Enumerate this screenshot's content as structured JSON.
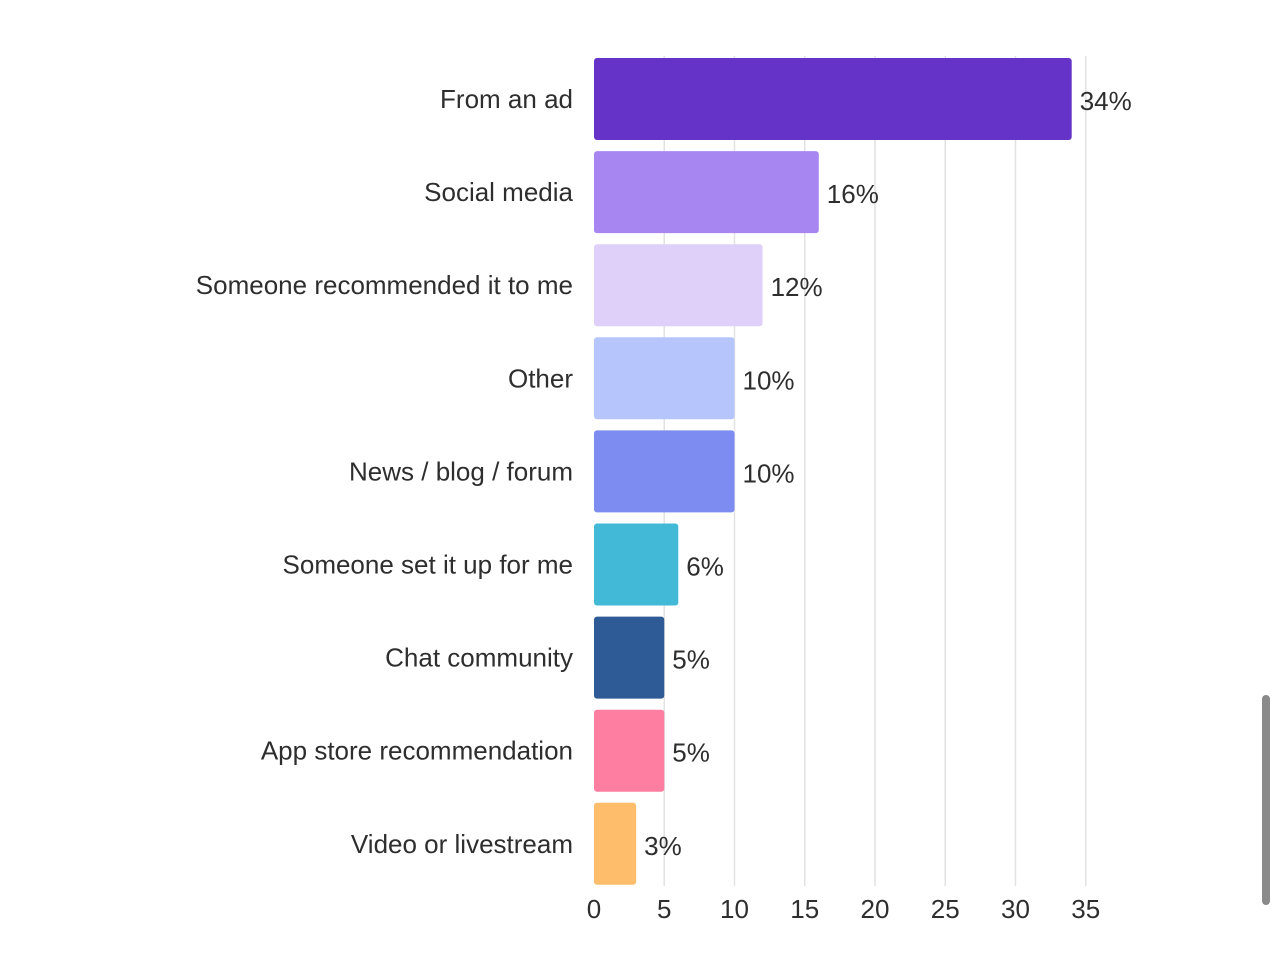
{
  "chart_data": {
    "type": "bar",
    "orientation": "horizontal",
    "categories": [
      "From an ad",
      "Social media",
      "Someone recommended it to me",
      "Other",
      "News / blog / forum",
      "Someone set it up for me",
      "Chat community",
      "App store recommendation",
      "Video or livestream"
    ],
    "values": [
      34,
      16,
      12,
      10,
      10,
      6,
      5,
      5,
      3
    ],
    "value_labels": [
      "34%",
      "16%",
      "12%",
      "10%",
      "10%",
      "6%",
      "5%",
      "5%",
      "3%"
    ],
    "colors": [
      "#6633c8",
      "#a886f2",
      "#dfd0f9",
      "#b7c5fd",
      "#7c8cf0",
      "#42b9d7",
      "#2e5b95",
      "#fd7ea1",
      "#febd6b"
    ],
    "xticks": [
      "0",
      "5",
      "10",
      "15",
      "20",
      "25",
      "30",
      "35"
    ],
    "xlim": [
      0,
      35
    ],
    "grid": true
  }
}
